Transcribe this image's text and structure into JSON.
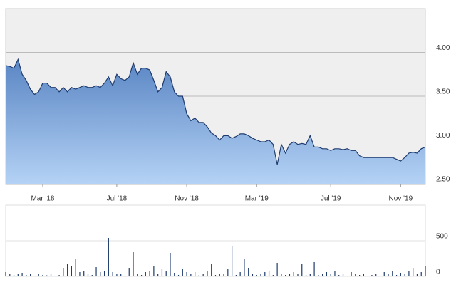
{
  "chart_data": [
    {
      "type": "area",
      "categories": [
        null,
        null,
        null,
        null,
        null,
        null,
        null,
        null,
        null,
        "Mar '18",
        null,
        null,
        null,
        null,
        null,
        null,
        null,
        null,
        null,
        null,
        null,
        null,
        null,
        null,
        null,
        null,
        null,
        "Jul '18",
        null,
        null,
        null,
        null,
        null,
        null,
        null,
        null,
        null,
        null,
        null,
        null,
        null,
        null,
        null,
        null,
        "Nov '18",
        null,
        null,
        null,
        null,
        null,
        null,
        null,
        null,
        null,
        null,
        null,
        null,
        null,
        null,
        null,
        null,
        "Mar '19",
        null,
        null,
        null,
        null,
        null,
        null,
        null,
        null,
        null,
        null,
        null,
        null,
        null,
        null,
        null,
        null,
        null,
        "Jul '19",
        null,
        null,
        null,
        null,
        null,
        null,
        null,
        null,
        null,
        null,
        null,
        null,
        null,
        null,
        null,
        null,
        "Nov '19",
        null,
        null,
        null,
        null,
        null,
        null
      ],
      "values": [
        3.85,
        3.84,
        3.82,
        3.92,
        3.75,
        3.68,
        3.58,
        3.52,
        3.55,
        3.65,
        3.65,
        3.6,
        3.6,
        3.55,
        3.6,
        3.55,
        3.6,
        3.58,
        3.6,
        3.62,
        3.6,
        3.6,
        3.62,
        3.6,
        3.65,
        3.72,
        3.62,
        3.75,
        3.7,
        3.68,
        3.72,
        3.88,
        3.75,
        3.82,
        3.82,
        3.8,
        3.68,
        3.55,
        3.6,
        3.78,
        3.72,
        3.55,
        3.5,
        3.5,
        3.3,
        3.22,
        3.25,
        3.2,
        3.2,
        3.15,
        3.08,
        3.05,
        3.0,
        3.05,
        3.05,
        3.02,
        3.04,
        3.07,
        3.07,
        3.05,
        3.02,
        3.0,
        2.98,
        2.98,
        3.0,
        2.95,
        2.72,
        2.95,
        2.85,
        2.95,
        2.98,
        2.95,
        2.96,
        2.95,
        3.05,
        2.92,
        2.92,
        2.9,
        2.9,
        2.88,
        2.9,
        2.9,
        2.89,
        2.9,
        2.88,
        2.88,
        2.82,
        2.8,
        2.8,
        2.8,
        2.8,
        2.8,
        2.8,
        2.8,
        2.8,
        2.78,
        2.76,
        2.8,
        2.85,
        2.86,
        2.85,
        2.9,
        2.92
      ],
      "color": "#1f3b6e",
      "ylim": [
        2.5,
        4.5
      ],
      "yticks": [
        {
          "value": 2.5,
          "label": "2.50"
        },
        {
          "value": 3,
          "label": "3.00"
        },
        {
          "value": 3.5,
          "label": "3.50"
        },
        {
          "value": 4,
          "label": "4.00"
        }
      ],
      "grid": true
    },
    {
      "type": "bar",
      "values": [
        60,
        40,
        20,
        30,
        50,
        20,
        30,
        10,
        40,
        20,
        15,
        30,
        10,
        20,
        120,
        180,
        150,
        250,
        60,
        70,
        40,
        20,
        130,
        60,
        80,
        540,
        60,
        40,
        30,
        10,
        120,
        350,
        40,
        20,
        60,
        80,
        150,
        30,
        100,
        80,
        330,
        50,
        20,
        110,
        60,
        30,
        60,
        20,
        40,
        80,
        180,
        20,
        40,
        30,
        100,
        430,
        20,
        60,
        250,
        120,
        40,
        20,
        30,
        60,
        80,
        20,
        190,
        40,
        20,
        30,
        60,
        40,
        180,
        20,
        40,
        200,
        20,
        30,
        60,
        40,
        80,
        20,
        30,
        10,
        60,
        40,
        20,
        30,
        10,
        20,
        30,
        10,
        60,
        40,
        70,
        20,
        50,
        30,
        80,
        120,
        40,
        60,
        150
      ],
      "color": "#1f3b6e",
      "ylim": [
        0,
        1000
      ],
      "yticks": [
        0,
        500
      ],
      "grid": true
    }
  ]
}
